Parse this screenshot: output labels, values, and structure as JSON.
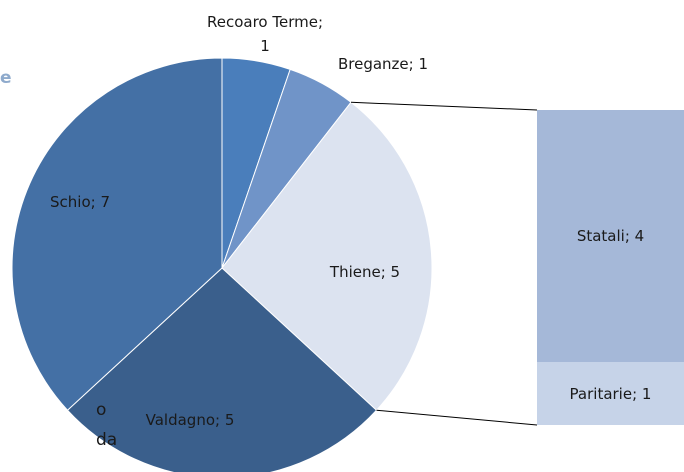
{
  "background_text": [
    "e",
    "o",
    "da"
  ],
  "chart_data": {
    "type": "pie_of_bar",
    "categories": [
      "Recoaro Terme",
      "Breganze",
      "Thiene",
      "Valdagno",
      "Schio"
    ],
    "values": [
      1,
      1,
      5,
      5,
      7
    ],
    "value_labels": [
      "Recoaro Terme; 1",
      "Breganze; 1",
      "Thiene; 5",
      "Valdagno; 5",
      "Schio; 7"
    ],
    "colors": [
      "#4a7ebb",
      "#7094c8",
      "#dce3f0",
      "#3a5f8c",
      "#4470a5"
    ],
    "split": "Thiene",
    "secondary": {
      "categories": [
        "Statali",
        "Paritarie"
      ],
      "values": [
        4,
        1
      ],
      "value_labels": [
        "Statali; 4",
        "Paritarie; 1"
      ],
      "colors": [
        "#a5b8d8",
        "#c6d3e8"
      ]
    }
  }
}
